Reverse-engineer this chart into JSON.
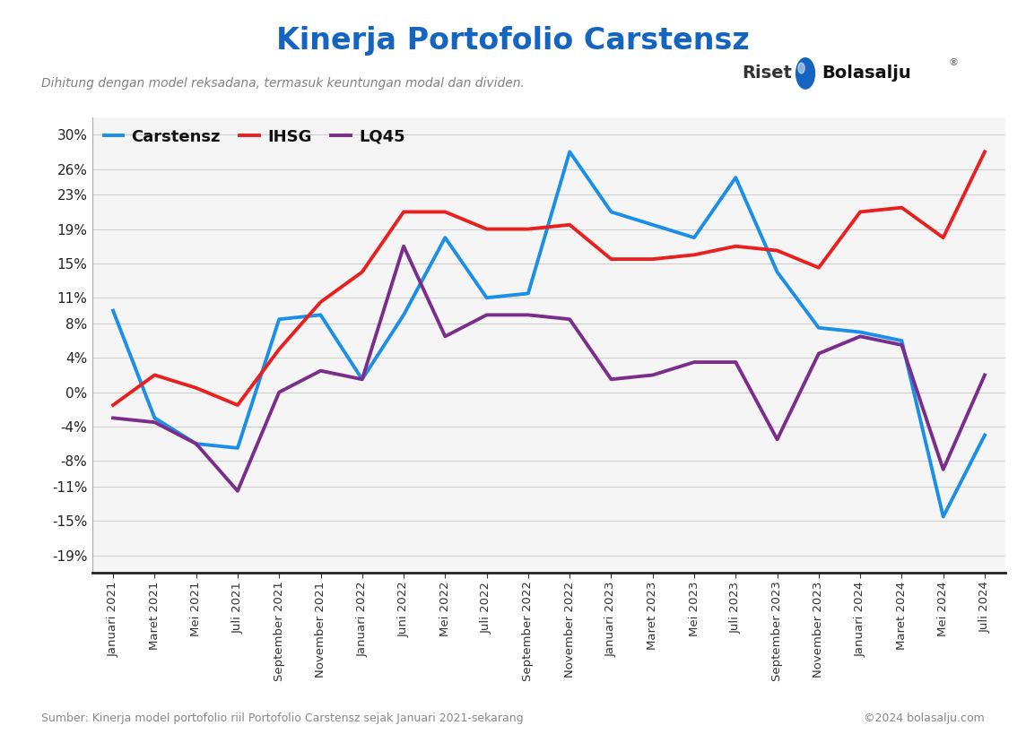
{
  "title": "Kinerja Portofolio Carstensz",
  "subtitle": "Dihitung dengan model reksadana, termasuk keuntungan modal dan dividen.",
  "source_text": "Sumber: Kinerja model portofolio riil Portofolio Carstensz sejak Januari 2021-sekarang",
  "copyright_text": "©2024 bolasalju.com",
  "x_labels": [
    "Januari 2021",
    "Maret 2021",
    "Mei 2021",
    "Juli 2021",
    "September 2021",
    "November 2021",
    "Januari 2022",
    "Juni 2022",
    "Mei 2022",
    "Juli 2022",
    "September 2022",
    "November 2022",
    "Januari 2023",
    "Maret 2023",
    "Mei 2023",
    "Juli 2023",
    "September 2023",
    "November 2023",
    "Januari 2024",
    "Maret 2024",
    "Mei 2024",
    "Juli 2024"
  ],
  "carstensz": [
    9.5,
    -3.0,
    -6.0,
    -6.5,
    8.5,
    9.0,
    1.5,
    9.0,
    18.0,
    11.0,
    11.5,
    28.0,
    21.0,
    19.5,
    18.0,
    25.0,
    14.0,
    7.5,
    7.0,
    6.0,
    -14.5,
    -5.0
  ],
  "ihsg": [
    -1.5,
    2.0,
    0.5,
    -1.5,
    5.0,
    10.5,
    14.0,
    21.0,
    21.0,
    19.0,
    19.0,
    19.5,
    15.5,
    15.5,
    16.0,
    17.0,
    16.5,
    14.5,
    21.0,
    21.5,
    18.0,
    28.0
  ],
  "lq45": [
    -3.0,
    -3.5,
    -6.0,
    -11.5,
    0.0,
    2.5,
    1.5,
    17.0,
    6.5,
    9.0,
    9.0,
    8.5,
    1.5,
    2.0,
    3.5,
    3.5,
    -5.5,
    4.5,
    6.5,
    5.5,
    -9.0,
    2.0
  ],
  "carstensz_color": "#1B8FE8",
  "ihsg_color": "#E82020",
  "lq45_color": "#7B2D8B",
  "title_color": "#1565C0",
  "subtitle_color": "#808080",
  "background_color": "#FFFFFF",
  "plot_bg_color": "#F5F5F5",
  "grid_color": "#CCCCCC",
  "yticks": [
    30,
    26,
    23,
    19,
    15,
    11,
    8,
    4,
    0,
    -4,
    -8,
    -11,
    -15,
    -19
  ],
  "ytick_labels": [
    "30%",
    "26%",
    "23%",
    "19%",
    "15%",
    "11%",
    "8%",
    "4%",
    "0%",
    "-4%",
    "-8%",
    "-11%",
    "-15%",
    "-19%"
  ],
  "ylim_min": -21,
  "ylim_max": 32,
  "line_width": 2.8
}
